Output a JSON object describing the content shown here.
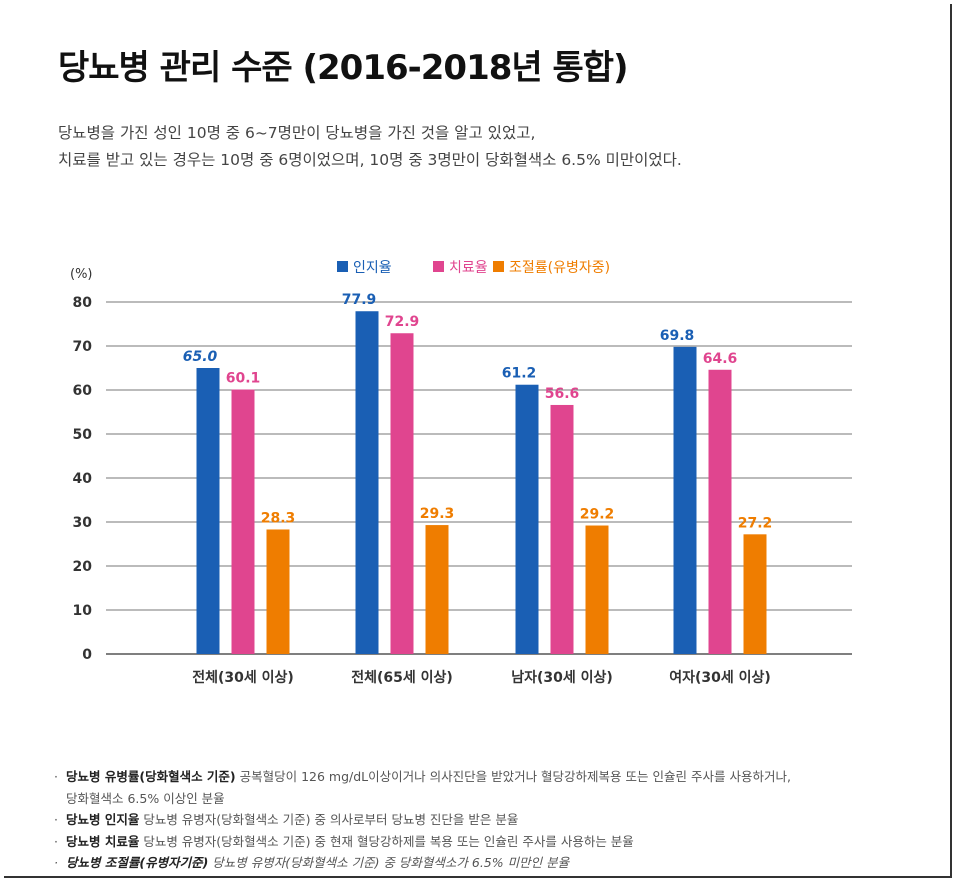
{
  "title": "당뇨병 관리 수준 (2016-2018년 통합)",
  "description": [
    "당뇨병을 가진 성인 10명 중 6~7명만이 당뇨병을 가진 것을 알고 있었고,",
    "치료를 받고 있는 경우는 10명 중 6명이었으며, 10명 중 3명만이 당화혈색소 6.5% 미만이었다."
  ],
  "chart_data": {
    "type": "bar",
    "unit_label": "(%)",
    "categories": [
      "전체(30세 이상)",
      "전체(65세 이상)",
      "남자(30세 이상)",
      "여자(30세 이상)"
    ],
    "series": [
      {
        "name": "인지율",
        "color": "#1a5fb4",
        "values": [
          65.0,
          77.9,
          61.2,
          69.8
        ]
      },
      {
        "name": "치료율",
        "color": "#e0458f",
        "values": [
          60.1,
          72.9,
          56.6,
          64.6
        ]
      },
      {
        "name": "조절률(유병자중)",
        "color": "#ef7d00",
        "values": [
          28.3,
          29.3,
          29.2,
          27.2
        ]
      }
    ],
    "value_labels": [
      [
        "65.0",
        "77.9",
        "61.2",
        "69.8"
      ],
      [
        "60.1",
        "72.9",
        "56.6",
        "64.6"
      ],
      [
        "28.3",
        "29.3",
        "29.2",
        "27.2"
      ]
    ],
    "yticks": [
      0,
      10,
      20,
      30,
      40,
      50,
      60,
      70,
      80
    ],
    "ylim": [
      0,
      80
    ],
    "grid": true,
    "legend_position": "top-center"
  },
  "notes": [
    {
      "term": "당뇨병 유병률(당화혈색소 기준)",
      "text": " 공복혈당이 126 mg/dL이상이거나 의사진단을 받았거나 혈당강하제복용 또는 인슐린 주사를 사용하거나,",
      "cont": "당화혈색소 6.5% 이상인 분율"
    },
    {
      "term": "당뇨병 인지율",
      "text": " 당뇨병 유병자(당화혈색소 기준) 중 의사로부터 당뇨병 진단을 받은 분율",
      "cont": ""
    },
    {
      "term": "당뇨병 치료율",
      "text": " 당뇨병 유병자(당화혈색소 기준) 중 현재 혈당강하제를 복용 또는 인슐린 주사를 사용하는 분율",
      "cont": ""
    },
    {
      "term": "당뇨병 조절률(유병자기준)",
      "text": " 당뇨병 유병자(당화혈색소 기준) 중 당화혈색소가 6.5% 미만인 분율",
      "cont": ""
    }
  ]
}
